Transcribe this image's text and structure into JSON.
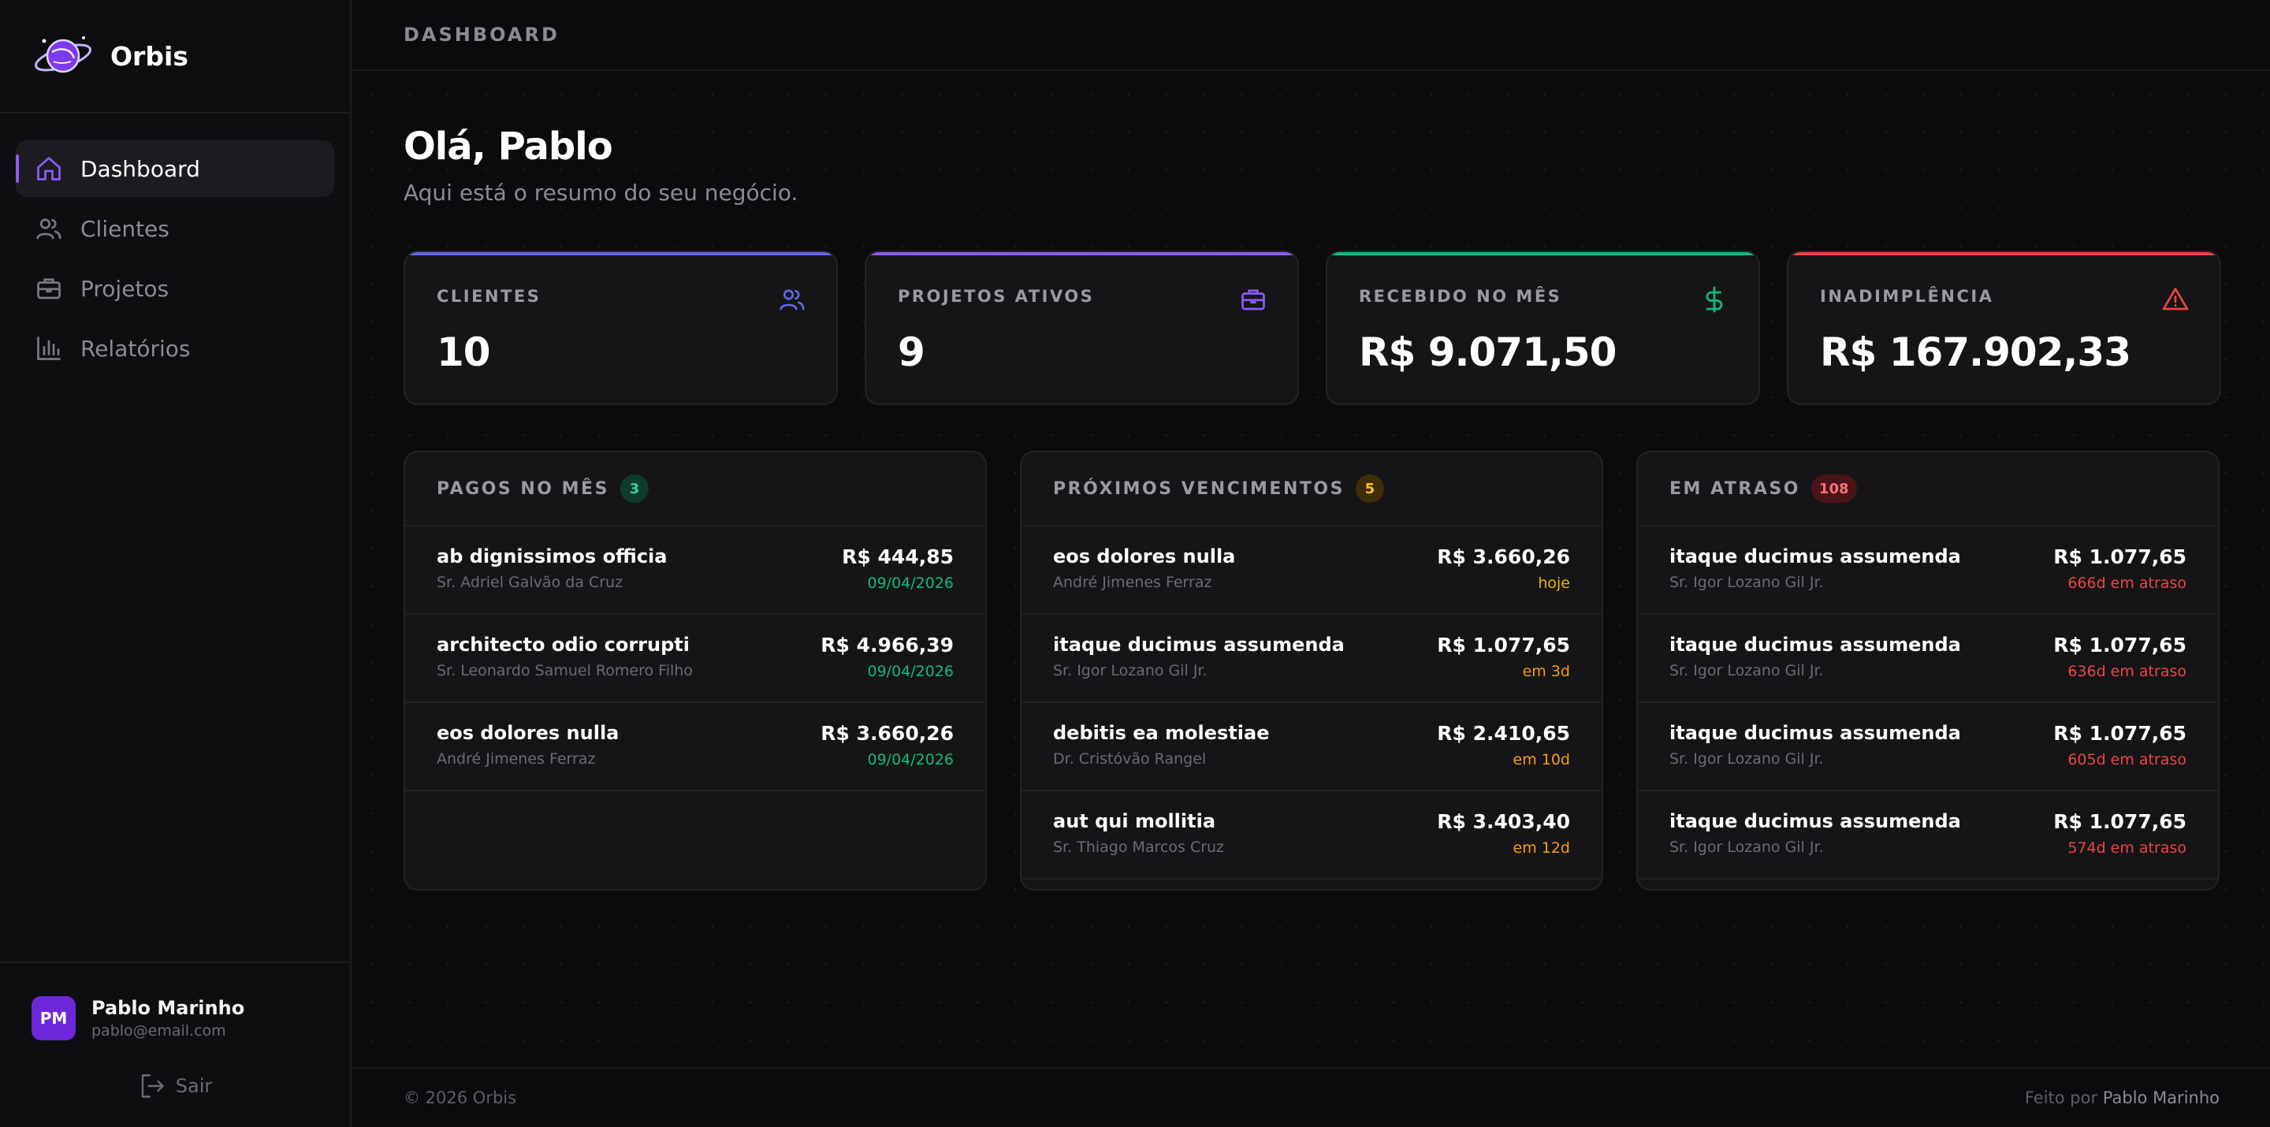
{
  "brand": {
    "name": "Orbis"
  },
  "nav": [
    {
      "label": "Dashboard",
      "icon": "home-icon",
      "active": true
    },
    {
      "label": "Clientes",
      "icon": "users-icon",
      "active": false
    },
    {
      "label": "Projetos",
      "icon": "briefcase-icon",
      "active": false
    },
    {
      "label": "Relatórios",
      "icon": "bar-chart-icon",
      "active": false
    }
  ],
  "user": {
    "initials": "PM",
    "name": "Pablo Marinho",
    "email": "pablo@email.com",
    "logout_label": "Sair"
  },
  "header": {
    "breadcrumb": "DASHBOARD"
  },
  "greeting": {
    "title": "Olá, Pablo",
    "subtitle": "Aqui está o resumo do seu negócio."
  },
  "stats": [
    {
      "label": "CLIENTES",
      "value": "10",
      "icon": "users-icon",
      "color": "#6366f1"
    },
    {
      "label": "PROJETOS ATIVOS",
      "value": "9",
      "icon": "briefcase-icon",
      "color": "#8b5cf6"
    },
    {
      "label": "RECEBIDO NO MÊS",
      "value": "R$ 9.071,50",
      "icon": "dollar-icon",
      "color": "#10b981"
    },
    {
      "label": "INADIMPLÊNCIA",
      "value": "R$ 167.902,33",
      "icon": "warning-icon",
      "color": "#ef4444"
    }
  ],
  "paid": {
    "title": "PAGOS NO MÊS",
    "count": "3",
    "items": [
      {
        "title": "ab dignissimos officia",
        "client": "Sr. Adriel Galvão da Cruz",
        "amount": "R$ 444,85",
        "date": "09/04/2026"
      },
      {
        "title": "architecto odio corrupti",
        "client": "Sr. Leonardo Samuel Romero Filho",
        "amount": "R$ 4.966,39",
        "date": "09/04/2026"
      },
      {
        "title": "eos dolores nulla",
        "client": "André Jimenes Ferraz",
        "amount": "R$ 3.660,26",
        "date": "09/04/2026"
      }
    ]
  },
  "upcoming": {
    "title": "PRÓXIMOS VENCIMENTOS",
    "count": "5",
    "items": [
      {
        "title": "eos dolores nulla",
        "client": "André Jimenes Ferraz",
        "amount": "R$ 3.660,26",
        "due": "hoje"
      },
      {
        "title": "itaque ducimus assumenda",
        "client": "Sr. Igor Lozano Gil Jr.",
        "amount": "R$ 1.077,65",
        "due": "em 3d"
      },
      {
        "title": "debitis ea molestiae",
        "client": "Dr. Cristóvão Rangel",
        "amount": "R$ 2.410,65",
        "due": "em 10d"
      },
      {
        "title": "aut qui mollitia",
        "client": "Sr. Thiago Marcos Cruz",
        "amount": "R$ 3.403,40",
        "due": "em 12d"
      }
    ]
  },
  "overdue": {
    "title": "EM ATRASO",
    "count": "108",
    "items": [
      {
        "title": "itaque ducimus assumenda",
        "client": "Sr. Igor Lozano Gil Jr.",
        "amount": "R$ 1.077,65",
        "late": "666d em atraso"
      },
      {
        "title": "itaque ducimus assumenda",
        "client": "Sr. Igor Lozano Gil Jr.",
        "amount": "R$ 1.077,65",
        "late": "636d em atraso"
      },
      {
        "title": "itaque ducimus assumenda",
        "client": "Sr. Igor Lozano Gil Jr.",
        "amount": "R$ 1.077,65",
        "late": "605d em atraso"
      },
      {
        "title": "itaque ducimus assumenda",
        "client": "Sr. Igor Lozano Gil Jr.",
        "amount": "R$ 1.077,65",
        "late": "574d em atraso"
      }
    ]
  },
  "footer": {
    "copyright": "© 2026 Orbis",
    "made_by_prefix": "Feito por",
    "author": "Pablo Marinho"
  },
  "colors": {
    "paid": "#10b981",
    "today": "#eab308",
    "soon": "#f59e0b",
    "late": "#ef4444",
    "accent": "#8b5cf6"
  }
}
